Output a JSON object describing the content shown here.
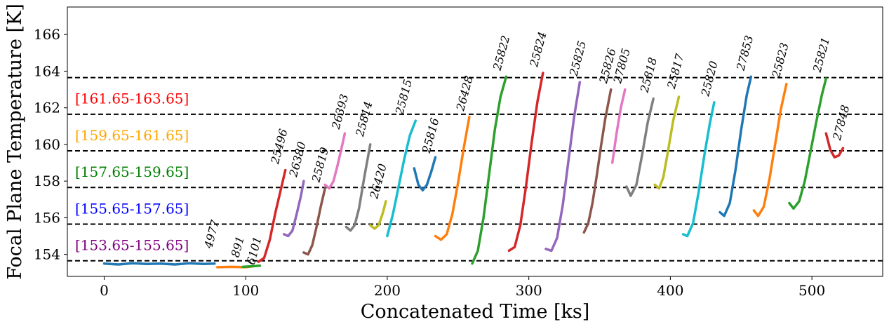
{
  "chart_data": {
    "type": "scatter",
    "title": "",
    "xlabel": "Concatenated Time [ks]",
    "ylabel": "Focal Plane Temperature [K]",
    "xlim": [
      -26,
      550
    ],
    "ylim": [
      152.8,
      167.5
    ],
    "xticks": [
      0,
      100,
      200,
      300,
      400,
      500
    ],
    "xtick_labels": [
      "0",
      "100",
      "200",
      "300",
      "400",
      "500"
    ],
    "yticks": [
      154,
      156,
      158,
      160,
      162,
      164,
      166
    ],
    "ytick_labels": [
      "154",
      "156",
      "158",
      "160",
      "162",
      "164",
      "166"
    ],
    "grid": false,
    "hlines": [
      153.65,
      155.65,
      157.65,
      159.65,
      161.65,
      163.65
    ],
    "bands": [
      {
        "label": "[161.65-163.65]",
        "color": "#ff0000",
        "y": 162.5
      },
      {
        "label": "[159.65-161.65]",
        "color": "#ffa500",
        "y": 160.5
      },
      {
        "label": "[157.65-159.65]",
        "color": "#008000",
        "y": 158.5
      },
      {
        "label": "[155.65-157.65]",
        "color": "#0000ff",
        "y": 156.5
      },
      {
        "label": "[153.65-155.65]",
        "color": "#800080",
        "y": 154.5
      }
    ],
    "series": [
      {
        "name": "4977",
        "color": "#1f77b4",
        "label_x": 76,
        "label_y": 154.3,
        "x": [
          0,
          10,
          20,
          30,
          40,
          50,
          60,
          70,
          78
        ],
        "y": [
          153.5,
          153.45,
          153.52,
          153.48,
          153.5,
          153.45,
          153.52,
          153.48,
          153.5
        ]
      },
      {
        "name": "891",
        "color": "#ff7f0e",
        "label_x": 95,
        "label_y": 153.8,
        "x": [
          80,
          90,
          100,
          105
        ],
        "y": [
          153.3,
          153.32,
          153.3,
          153.35
        ]
      },
      {
        "name": "6101",
        "color": "#2ca02c",
        "label_x": 106,
        "label_y": 153.4,
        "x": [
          98,
          104,
          110
        ],
        "y": [
          153.32,
          153.35,
          153.38
        ]
      },
      {
        "name": "25496",
        "color": "#d62728",
        "label_x": 123,
        "label_y": 158.9,
        "x": [
          109,
          113,
          117,
          121,
          125,
          128
        ],
        "y": [
          153.6,
          153.8,
          154.8,
          156.3,
          157.6,
          158.6
        ]
      },
      {
        "name": "26380",
        "color": "#9467bd",
        "label_x": 136,
        "label_y": 158.2,
        "x": [
          127,
          130,
          133,
          136,
          139,
          141
        ],
        "y": [
          155.1,
          155.0,
          155.3,
          156.2,
          157.2,
          158.0
        ]
      },
      {
        "name": "25819",
        "color": "#8c564b",
        "label_x": 152,
        "label_y": 157.9,
        "x": [
          141,
          144,
          147,
          150,
          153,
          156
        ],
        "y": [
          154.1,
          154.0,
          154.5,
          155.5,
          156.6,
          157.6
        ]
      },
      {
        "name": "26393",
        "color": "#e377c2",
        "label_x": 166,
        "label_y": 160.8,
        "x": [
          156,
          159,
          162,
          165,
          168,
          170
        ],
        "y": [
          157.8,
          157.6,
          158.0,
          158.9,
          159.9,
          160.6
        ]
      },
      {
        "name": "25814",
        "color": "#7f7f7f",
        "label_x": 183,
        "label_y": 160.4,
        "x": [
          171,
          174,
          177,
          180,
          184,
          188
        ],
        "y": [
          155.5,
          155.3,
          155.6,
          156.5,
          158.3,
          160.0
        ]
      },
      {
        "name": "26420",
        "color": "#bcbd22",
        "label_x": 193,
        "label_y": 157.0,
        "x": [
          188,
          191,
          194,
          197,
          199
        ],
        "y": [
          155.6,
          155.4,
          155.6,
          156.3,
          156.9
        ]
      },
      {
        "name": "25815",
        "color": "#17becf",
        "label_x": 211,
        "label_y": 161.6,
        "x": [
          200,
          204,
          208,
          212,
          216,
          220
        ],
        "y": [
          155.0,
          156.2,
          157.7,
          159.2,
          160.5,
          161.3
        ]
      },
      {
        "name": "25816",
        "color": "#1f77b4",
        "label_x": 230,
        "label_y": 159.5,
        "x": [
          219,
          222,
          225,
          228,
          231,
          234
        ],
        "y": [
          158.7,
          157.8,
          157.5,
          157.8,
          158.5,
          159.3
        ]
      },
      {
        "name": "26428",
        "color": "#ff7f0e",
        "label_x": 254,
        "label_y": 161.8,
        "x": [
          234,
          238,
          242,
          246,
          250,
          254,
          258
        ],
        "y": [
          155.0,
          154.8,
          155.1,
          156.2,
          157.9,
          159.8,
          161.5
        ]
      },
      {
        "name": "25822",
        "color": "#2ca02c",
        "label_x": 280,
        "label_y": 164.0,
        "x": [
          260,
          264,
          268,
          272,
          276,
          280,
          284
        ],
        "y": [
          153.5,
          154.2,
          156.0,
          158.4,
          160.8,
          162.6,
          163.7
        ]
      },
      {
        "name": "25824",
        "color": "#d62728",
        "label_x": 306,
        "label_y": 164.2,
        "x": [
          286,
          290,
          294,
          298,
          302,
          306,
          310
        ],
        "y": [
          154.2,
          154.4,
          155.6,
          157.7,
          160.1,
          162.3,
          163.9
        ]
      },
      {
        "name": "25825",
        "color": "#9467bd",
        "label_x": 334,
        "label_y": 163.7,
        "x": [
          312,
          316,
          320,
          324,
          328,
          332,
          336
        ],
        "y": [
          154.3,
          154.2,
          154.9,
          156.7,
          159.1,
          161.5,
          163.4
        ]
      },
      {
        "name": "25826",
        "color": "#8c564b",
        "label_x": 355,
        "label_y": 163.3,
        "x": [
          339,
          342,
          345,
          348,
          351,
          354,
          358
        ],
        "y": [
          155.2,
          155.7,
          156.8,
          158.3,
          159.9,
          161.4,
          163.0
        ]
      },
      {
        "name": "27805",
        "color": "#e377c2",
        "label_x": 365,
        "label_y": 163.3,
        "x": [
          359,
          362,
          365,
          368
        ],
        "y": [
          159.0,
          160.6,
          162.0,
          163.0
        ]
      },
      {
        "name": "25818",
        "color": "#7f7f7f",
        "label_x": 384,
        "label_y": 162.8,
        "x": [
          369,
          372,
          376,
          380,
          384,
          388
        ],
        "y": [
          157.7,
          157.2,
          157.8,
          159.4,
          161.2,
          162.5
        ]
      },
      {
        "name": "25817",
        "color": "#bcbd22",
        "label_x": 403,
        "label_y": 163.0,
        "x": [
          389,
          392,
          395,
          398,
          402,
          406
        ],
        "y": [
          157.8,
          157.6,
          158.2,
          159.5,
          161.3,
          162.6
        ]
      },
      {
        "name": "25820",
        "color": "#17becf",
        "label_x": 427,
        "label_y": 162.6,
        "x": [
          409,
          412,
          416,
          420,
          424,
          428,
          431
        ],
        "y": [
          155.1,
          155.0,
          155.7,
          157.4,
          159.4,
          161.2,
          162.3
        ]
      },
      {
        "name": "27853",
        "color": "#1f77b4",
        "label_x": 452,
        "label_y": 164.0,
        "x": [
          435,
          438,
          442,
          446,
          450,
          454,
          457
        ],
        "y": [
          156.3,
          156.1,
          156.8,
          158.6,
          160.8,
          162.7,
          163.7
        ]
      },
      {
        "name": "25823",
        "color": "#ff7f0e",
        "label_x": 477,
        "label_y": 163.6,
        "x": [
          459,
          462,
          466,
          470,
          474,
          478,
          482
        ],
        "y": [
          156.4,
          156.1,
          156.6,
          158.1,
          160.0,
          161.9,
          163.3
        ]
      },
      {
        "name": "25821",
        "color": "#2ca02c",
        "label_x": 506,
        "label_y": 163.9,
        "x": [
          484,
          487,
          491,
          495,
          499,
          503,
          507,
          510
        ],
        "y": [
          156.8,
          156.5,
          156.9,
          158.0,
          159.6,
          161.2,
          162.7,
          163.6
        ]
      },
      {
        "name": "27848",
        "color": "#d62728",
        "label_x": 520,
        "label_y": 160.2,
        "x": [
          510,
          513,
          516,
          519,
          522
        ],
        "y": [
          160.6,
          159.7,
          159.3,
          159.4,
          159.8
        ]
      }
    ]
  }
}
